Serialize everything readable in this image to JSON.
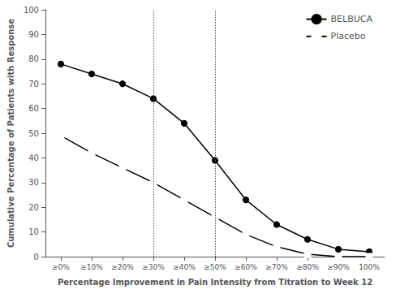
{
  "chart_data": {
    "type": "line",
    "xlabel": "Percentage Improvement in Pain Intensity from Titration to Week 12",
    "ylabel": "Cumulative Percentage of Patients with Response",
    "categories": [
      "≥0%",
      "≥10%",
      "≥20%",
      "≥30%",
      "≥40%",
      "≥50%",
      "≥60%",
      "≥70%",
      "≥80%",
      "≥90%",
      "100%"
    ],
    "series": [
      {
        "name": "BELBUCA",
        "color": "#000000",
        "marker": "circle",
        "values": [
          78,
          74,
          70,
          64,
          54,
          39,
          23,
          13,
          7,
          3,
          2
        ]
      },
      {
        "name": "Placebo",
        "color": "#000000",
        "marker": "square",
        "values": [
          49,
          42,
          36,
          30,
          23,
          16,
          9,
          4,
          1,
          0,
          0
        ]
      }
    ],
    "ylim": [
      0,
      100
    ],
    "yticks": [
      0,
      10,
      20,
      30,
      40,
      50,
      60,
      70,
      80,
      90,
      100
    ],
    "vlines": [
      "≥30%",
      "≥50%"
    ],
    "grid": false,
    "legend": "upper right"
  }
}
